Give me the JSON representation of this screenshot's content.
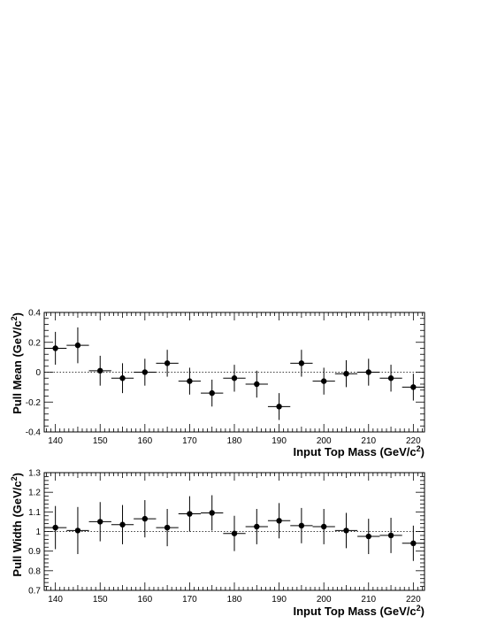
{
  "chart_data": [
    {
      "type": "scatter",
      "xlabel": "Input Top Mass (GeV/c",
      "xlabel_sup": "2",
      "xlabel_tail": ")",
      "ylabel": "Pull Mean (GeV/c",
      "ylabel_sup": "2",
      "ylabel_tail": ")",
      "xlim": [
        137.5,
        222.5
      ],
      "ylim": [
        -0.4,
        0.4
      ],
      "xticks": [
        140,
        150,
        160,
        170,
        180,
        190,
        200,
        210,
        220
      ],
      "yticks": [
        -0.4,
        -0.2,
        0,
        0.2,
        0.4
      ],
      "ytick_labels": [
        "-0.4",
        "-0.2",
        "0",
        "0.2",
        "0.4"
      ],
      "reference_line": 0,
      "x_halfwidth": 2.5,
      "x": [
        140,
        145,
        150,
        155,
        160,
        165,
        170,
        175,
        180,
        185,
        190,
        195,
        200,
        205,
        210,
        215,
        220
      ],
      "y": [
        0.16,
        0.18,
        0.01,
        -0.04,
        0.0,
        0.06,
        -0.06,
        -0.14,
        -0.04,
        -0.08,
        -0.23,
        0.06,
        -0.06,
        -0.01,
        0.0,
        -0.04,
        -0.1
      ],
      "yerr": [
        0.11,
        0.12,
        0.1,
        0.1,
        0.09,
        0.09,
        0.09,
        0.09,
        0.09,
        0.09,
        0.09,
        0.09,
        0.09,
        0.09,
        0.09,
        0.09,
        0.09
      ]
    },
    {
      "type": "scatter",
      "xlabel": "Input Top Mass (GeV/c",
      "xlabel_sup": "2",
      "xlabel_tail": ")",
      "ylabel": "Pull Width (GeV/c",
      "ylabel_sup": "2",
      "ylabel_tail": ")",
      "xlim": [
        137.5,
        222.5
      ],
      "ylim": [
        0.7,
        1.3
      ],
      "xticks": [
        140,
        150,
        160,
        170,
        180,
        190,
        200,
        210,
        220
      ],
      "yticks": [
        0.7,
        0.8,
        0.9,
        1.0,
        1.1,
        1.2,
        1.3
      ],
      "ytick_labels": [
        "0.7",
        "0.8",
        "0.9",
        "1",
        "1.1",
        "1.2",
        "1.3"
      ],
      "reference_line": 1.0,
      "x_halfwidth": 2.5,
      "x": [
        140,
        145,
        150,
        155,
        160,
        165,
        170,
        175,
        180,
        185,
        190,
        195,
        200,
        205,
        210,
        215,
        220
      ],
      "y": [
        1.02,
        1.005,
        1.05,
        1.035,
        1.065,
        1.02,
        1.09,
        1.095,
        0.99,
        1.025,
        1.055,
        1.03,
        1.025,
        1.005,
        0.975,
        0.98,
        0.94
      ],
      "yerr": [
        0.11,
        0.12,
        0.1,
        0.1,
        0.095,
        0.095,
        0.09,
        0.09,
        0.09,
        0.09,
        0.09,
        0.09,
        0.09,
        0.09,
        0.09,
        0.09,
        0.09
      ]
    }
  ]
}
